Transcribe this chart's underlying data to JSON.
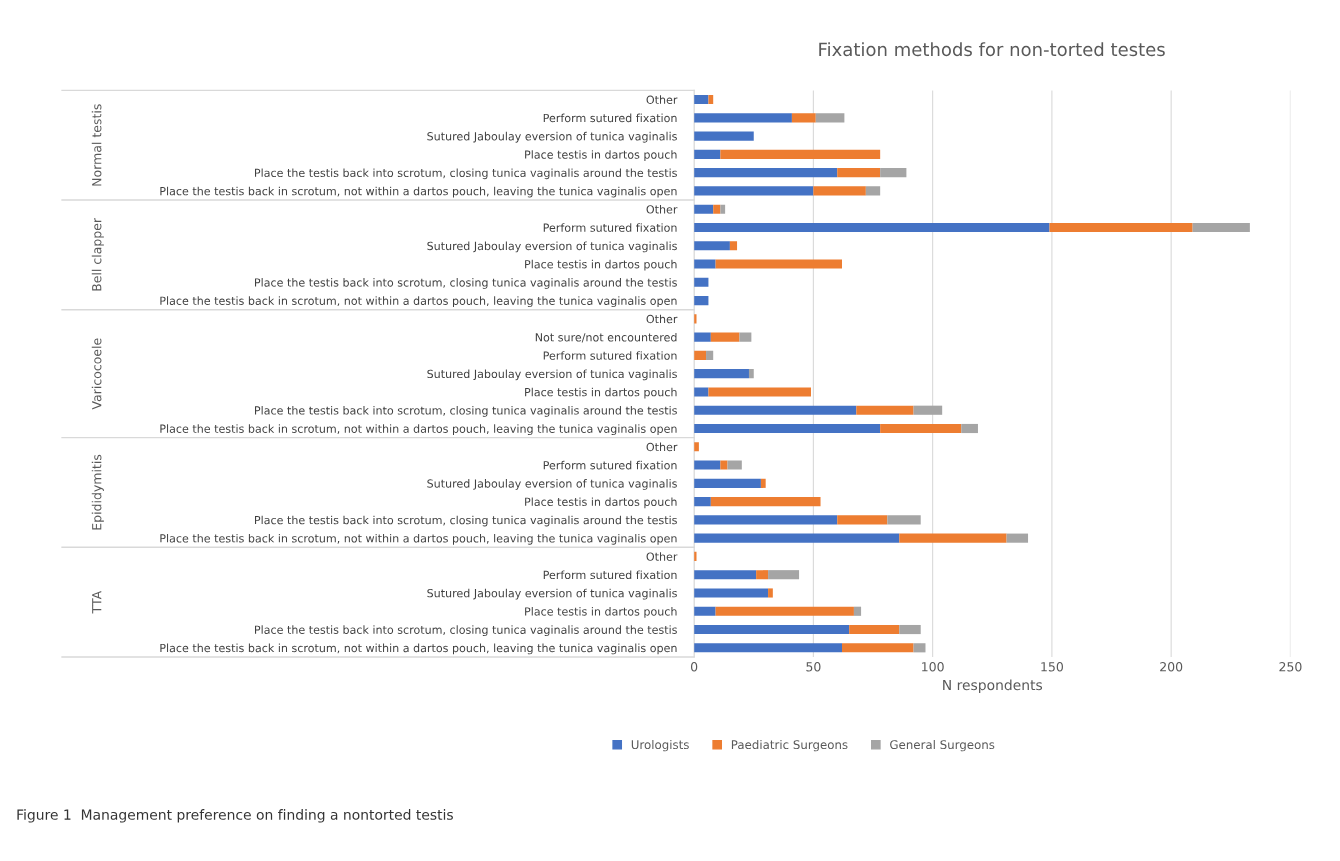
{
  "chart_data": {
    "type": "bar",
    "orientation": "horizontal",
    "stacked": true,
    "title": "Fixation methods for non-torted testes",
    "xlabel": "N respondents",
    "categories": [
      "Other",
      "Perform sutured fixation",
      "Sutured Jaboulay eversion of tunica vaginalis",
      "Place testis in dartos pouch",
      "Place the testis back into scrotum, closing tunica vaginalis around the testis",
      "Place the testis back in scrotum, not within a dartos pouch, leaving the tunica vaginalis open",
      "Other",
      "Perform sutured fixation",
      "Sutured Jaboulay eversion of tunica vaginalis",
      "Place testis in dartos pouch",
      "Place the testis back into scrotum, closing tunica vaginalis around the testis",
      "Place the testis back in scrotum, not within a dartos pouch, leaving the tunica vaginalis open",
      "Other",
      "Not sure/not encountered",
      "Perform sutured fixation",
      "Sutured Jaboulay eversion of tunica vaginalis",
      "Place testis in dartos pouch",
      "Place the testis back into scrotum, closing tunica vaginalis around the testis",
      "Place the testis back in scrotum, not within a dartos pouch, leaving the tunica vaginalis open",
      "Other",
      "Perform sutured fixation",
      "Sutured Jaboulay eversion of tunica vaginalis",
      "Place testis in dartos pouch",
      "Place the testis back into scrotum, closing tunica vaginalis around the testis",
      "Place the testis back in scrotum, not within a dartos pouch, leaving the tunica vaginalis open",
      "Other",
      "Perform sutured fixation",
      "Sutured Jaboulay eversion of tunica vaginalis",
      "Place testis in dartos pouch",
      "Place the testis back into scrotum, closing tunica vaginalis around the testis",
      "Place the testis back in scrotum, not within a dartos pouch, leaving the tunica vaginalis open"
    ],
    "series": [
      {
        "name": "Urologists",
        "color": "#4472c4",
        "values": [
          6,
          41,
          25,
          11,
          60,
          50,
          8,
          149,
          15,
          9,
          6,
          6,
          0,
          7,
          0,
          23,
          6,
          68,
          78,
          0,
          11,
          28,
          7,
          60,
          86,
          0,
          26,
          31,
          9,
          65,
          62
        ]
      },
      {
        "name": "Paediatric Surgeons",
        "color": "#ed7d31",
        "values": [
          2,
          10,
          0,
          67,
          18,
          22,
          3,
          60,
          3,
          53,
          0,
          0,
          1,
          12,
          5,
          0,
          43,
          24,
          34,
          2,
          3,
          2,
          46,
          21,
          45,
          1,
          5,
          2,
          58,
          21,
          30
        ]
      },
      {
        "name": "General Surgeons",
        "color": "#a5a5a5",
        "values": [
          0,
          12,
          0,
          0,
          11,
          6,
          2,
          24,
          0,
          0,
          0,
          0,
          0,
          5,
          3,
          2,
          0,
          12,
          7,
          0,
          6,
          0,
          0,
          14,
          9,
          0,
          13,
          0,
          3,
          9,
          5
        ]
      }
    ],
    "xlim": [
      0,
      250
    ],
    "xticks": [
      0,
      50,
      100,
      150,
      200,
      250
    ],
    "grid": "x",
    "legend": "bottom",
    "annotations": [
      "Normal testis",
      "Bell clapper",
      "Varicocoele",
      "Epididymitis",
      "TTA",
      "Figure 1  Management preference on finding a nontorted testis"
    ]
  }
}
